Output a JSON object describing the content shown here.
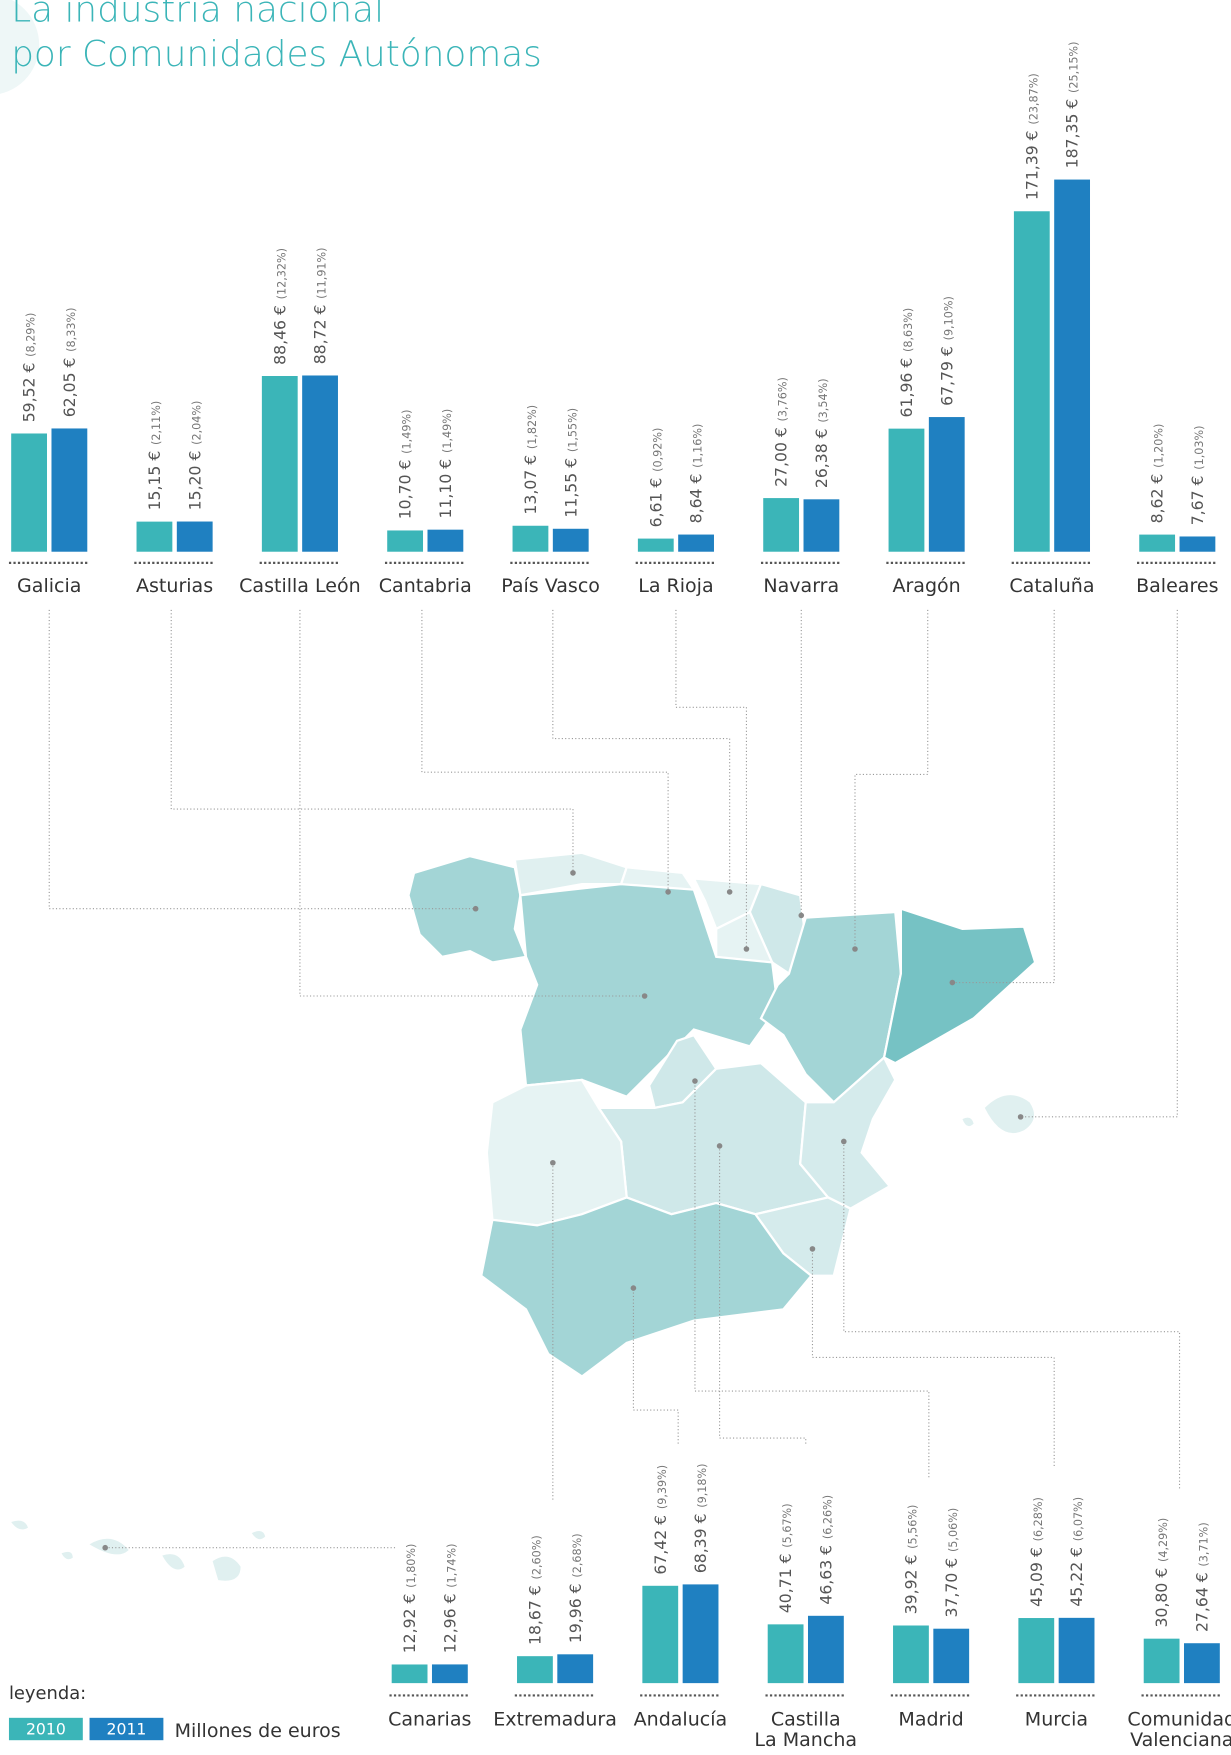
{
  "title": "La industria nacional\npor Comunidades Autónomas",
  "legend_title": "leyenda:",
  "unit": "Millones de euros",
  "chart_data": [
    {
      "type": "bar",
      "categories": [
        "Galicia",
        "Asturias",
        "Castilla León",
        "Cantabria",
        "País Vasco",
        "La Rioja",
        "Navarra",
        "Aragón",
        "Cataluña",
        "Baleares"
      ],
      "ylim": [
        0,
        200
      ],
      "series": [
        {
          "name": "2010",
          "color": "#3bb5b8",
          "values": [
            59.52,
            15.15,
            88.46,
            10.7,
            13.07,
            6.61,
            27.0,
            61.96,
            171.39,
            8.62
          ],
          "value_labels": [
            "59,52 €",
            "15,15 €",
            "88,46 €",
            "10,70 €",
            "13,07 €",
            "6,61 €",
            "27,00 €",
            "61,96 €",
            "171,39 €",
            "8,62 €"
          ],
          "share_labels": [
            "(8,29%)",
            "(2,11%)",
            "(12,32%)",
            "(1,49%)",
            "(1,82%)",
            "(0,92%)",
            "(3,76%)",
            "(8,63%)",
            "(23,87%)",
            "(1,20%)"
          ]
        },
        {
          "name": "2011",
          "color": "#1f80c1",
          "values": [
            62.05,
            15.2,
            88.72,
            11.1,
            11.55,
            8.64,
            26.38,
            67.79,
            187.35,
            7.67
          ],
          "value_labels": [
            "62,05 €",
            "15,20 €",
            "88,72 €",
            "11,10 €",
            "11,55 €",
            "8,64 €",
            "26,38 €",
            "67,79 €",
            "187,35 €",
            "7,67 €"
          ],
          "share_labels": [
            "(8,33%)",
            "(2,04%)",
            "(11,91%)",
            "(1,49%)",
            "(1,55%)",
            "(1,16%)",
            "(3,54%)",
            "(9,10%)",
            "(25,15%)",
            "(1,03%)"
          ]
        }
      ]
    },
    {
      "type": "bar",
      "categories": [
        "Canarias",
        "Extremadura",
        "Andalucía",
        "Castilla\nLa Mancha",
        "Madrid",
        "Murcia",
        "Comunidad\nValenciana"
      ],
      "ylim": [
        0,
        200
      ],
      "series": [
        {
          "name": "2010",
          "color": "#3bb5b8",
          "values": [
            12.92,
            18.67,
            67.42,
            40.71,
            39.92,
            45.09,
            30.8
          ],
          "value_labels": [
            "12,92 €",
            "18,67 €",
            "67,42 €",
            "40,71 €",
            "39,92 €",
            "45,09 €",
            "30,80 €"
          ],
          "share_labels": [
            "(1,80%)",
            "(2,60%)",
            "(9,39%)",
            "(5,67%)",
            "(5,56%)",
            "(6,28%)",
            "(4,29%)"
          ]
        },
        {
          "name": "2011",
          "color": "#1f80c1",
          "values": [
            12.96,
            19.96,
            68.39,
            46.63,
            37.7,
            45.22,
            27.64
          ],
          "value_labels": [
            "12,96 €",
            "19,96 €",
            "68,39 €",
            "46,63 €",
            "37,70 €",
            "45,22 €",
            "27,64 €"
          ],
          "share_labels": [
            "(1,74%)",
            "(2,68%)",
            "(9,18%)",
            "(6,26%)",
            "(5,06%)",
            "(6,07%)",
            "(3,71%)"
          ]
        }
      ]
    }
  ]
}
